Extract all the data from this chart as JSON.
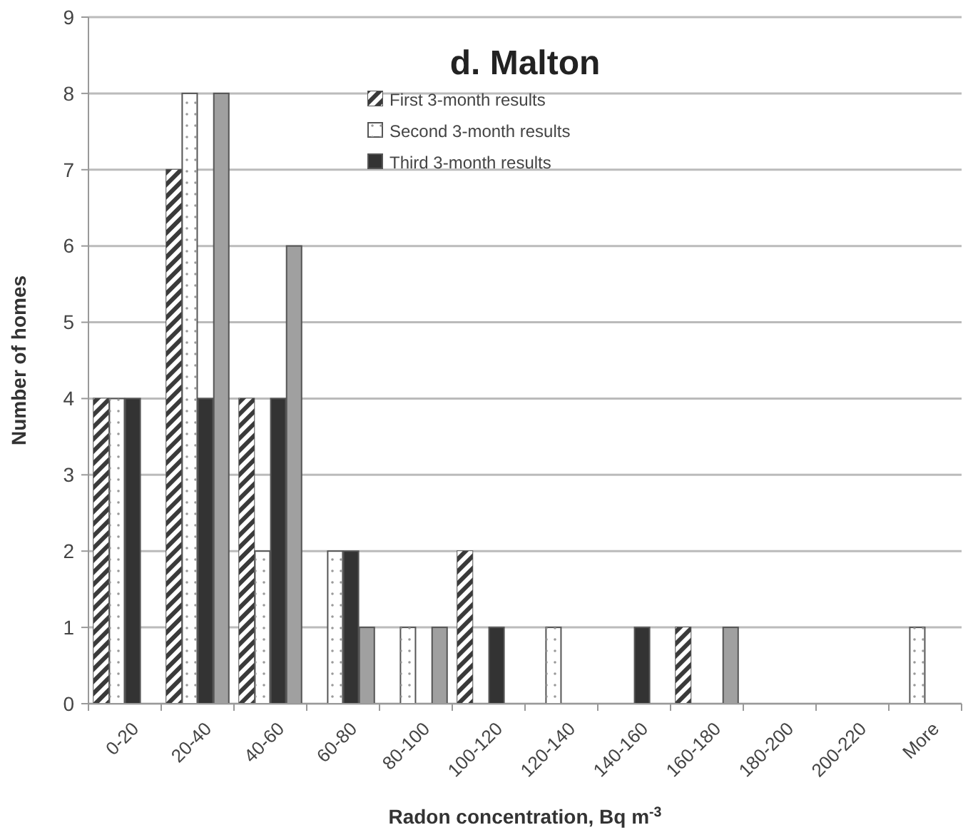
{
  "chart_data": {
    "type": "bar",
    "title": "d. Malton",
    "xlabel": "Radon concentration, Bq m$^{-3}$",
    "ylabel": "Number of homes",
    "categories": [
      "0-20",
      "20-40",
      "40-60",
      "60-80",
      "80-100",
      "100-120",
      "120-140",
      "140-160",
      "160-180",
      "180-200",
      "200-220",
      "More"
    ],
    "series": [
      {
        "name": "First 3-month results",
        "color": "#3a3a3a",
        "values": [
          4,
          7,
          4,
          0,
          0,
          2,
          0,
          0,
          1,
          0,
          0,
          0
        ]
      },
      {
        "name": "Second 3-month results",
        "color": "#ffffff",
        "values": [
          4,
          8,
          2,
          2,
          1,
          0,
          1,
          0,
          0,
          0,
          0,
          1
        ]
      },
      {
        "name": "Third 3-month results",
        "color": "#333333",
        "values": [
          4,
          4,
          4,
          2,
          0,
          1,
          0,
          1,
          0,
          0,
          0,
          0
        ]
      },
      {
        "color": "#a0a0a0",
        "values": [
          0,
          8,
          6,
          1,
          1,
          0,
          0,
          0,
          1,
          0,
          0,
          0
        ]
      }
    ],
    "ylim": [
      0,
      9
    ],
    "yticks": [
      0,
      1,
      2,
      3,
      4,
      5,
      6,
      7,
      8,
      9
    ],
    "grid": "y",
    "legend": "top"
  }
}
